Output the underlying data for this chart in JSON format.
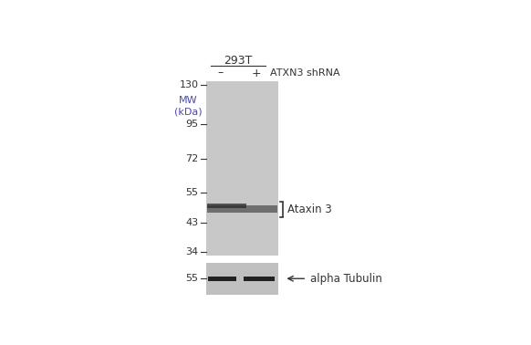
{
  "bg_color": "#ffffff",
  "gel_color": "#c8c8c8",
  "gel_color2": "#c0c0c0",
  "band_color_dark": "#1a1a1a",
  "title_293T": "293T",
  "col_minus": "–",
  "col_plus": "+",
  "col_label": "ATXN3 shRNA",
  "mw_label": "MW\n(kDa)",
  "mw_marks": [
    130,
    95,
    72,
    55,
    43,
    34
  ],
  "ataxin_label": "Ataxin 3",
  "ataxin_kda": 48,
  "alpha_tub_label": "alpha Tubulin",
  "alpha_tub_kda": 55,
  "font_size_title": 9,
  "font_size_labels": 8,
  "font_size_mw": 8,
  "mw_color": "#4a4aaa"
}
